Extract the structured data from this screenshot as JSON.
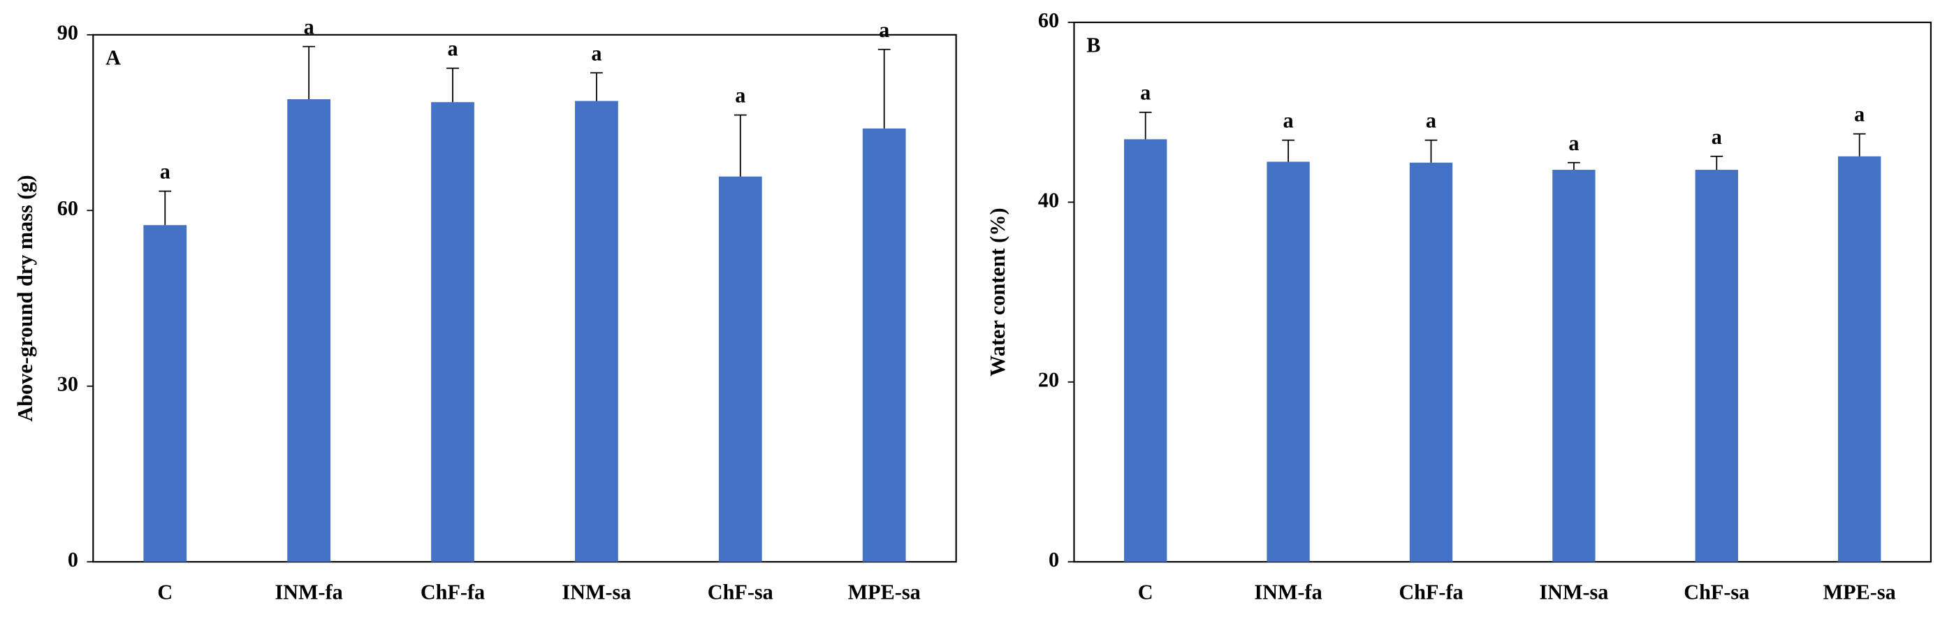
{
  "chart_data": [
    {
      "type": "bar",
      "panel": "A",
      "ylabel": "Above-ground dry mass (g)",
      "categories": [
        "C",
        "INM-fa",
        "ChF-fa",
        "INM-sa",
        "ChF-sa",
        "MPE-sa"
      ],
      "values": [
        57.5,
        79,
        78.5,
        78.7,
        65.8,
        74
      ],
      "errors": [
        5.8,
        9,
        5.8,
        4.8,
        10.5,
        13.5
      ],
      "annotations": [
        "a",
        "a",
        "a",
        "a",
        "a",
        "a"
      ],
      "color": "#4472c4",
      "ylim": [
        0,
        90
      ],
      "yticks": [
        0,
        30,
        60,
        90
      ]
    },
    {
      "type": "bar",
      "panel": "B",
      "ylabel": "Water content (%)",
      "categories": [
        "C",
        "INM-fa",
        "ChF-fa",
        "INM-sa",
        "ChF-sa",
        "MPE-sa"
      ],
      "values": [
        47.0,
        44.5,
        44.4,
        43.6,
        43.6,
        45.1
      ],
      "errors": [
        3.0,
        2.4,
        2.5,
        0.8,
        1.5,
        2.5
      ],
      "annotations": [
        "a",
        "a",
        "a",
        "a",
        "a",
        "a"
      ],
      "color": "#4472c4",
      "ylim": [
        0,
        60
      ],
      "yticks": [
        0,
        20,
        40,
        60
      ]
    }
  ]
}
